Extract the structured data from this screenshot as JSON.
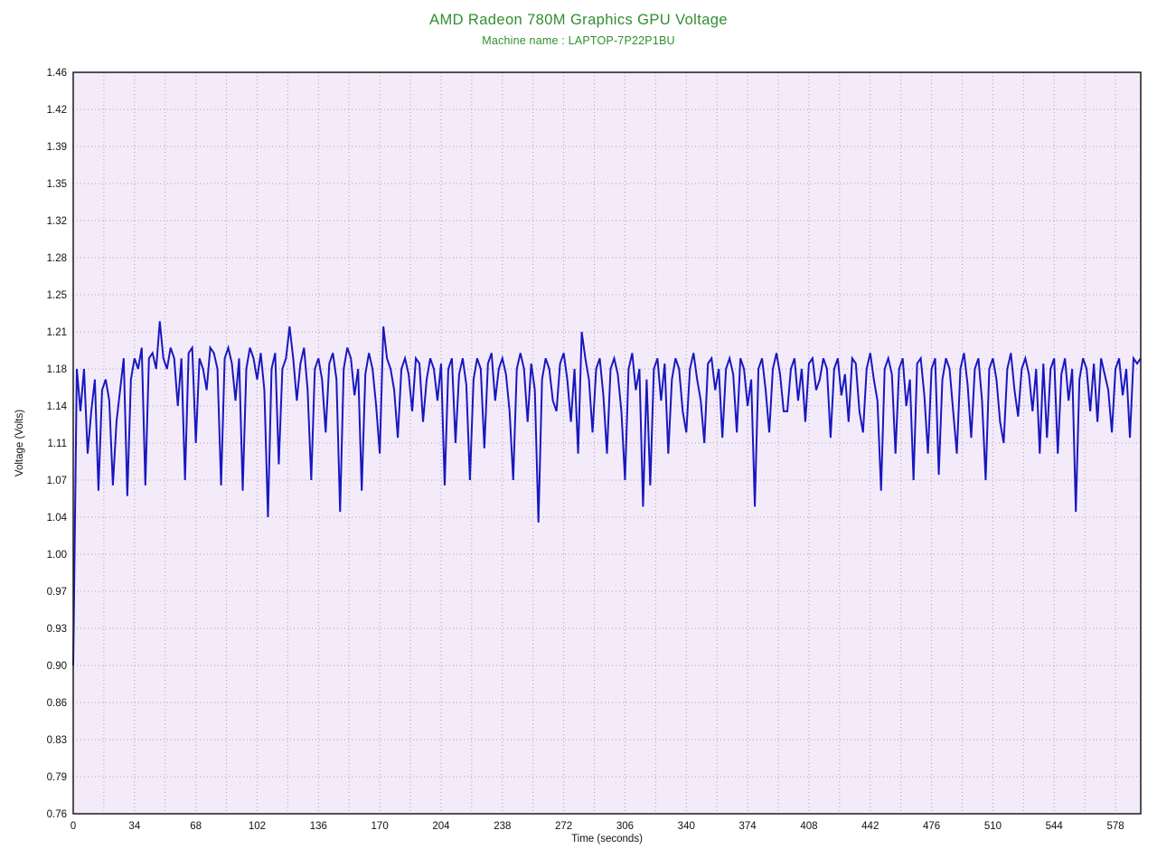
{
  "chart_data": {
    "type": "line",
    "title": "AMD Radeon 780M Graphics GPU Voltage",
    "subtitle": "Machine name : LAPTOP-7P22P1BU",
    "xlabel": "Time (seconds)",
    "ylabel": "Voltage (Volts)",
    "xlim": [
      0,
      592
    ],
    "ylim": [
      0.76,
      1.46
    ],
    "x_ticks": [
      0,
      34,
      68,
      102,
      136,
      170,
      204,
      238,
      272,
      306,
      340,
      374,
      408,
      442,
      476,
      510,
      544,
      578
    ],
    "x_minor_step": 17,
    "y_ticks": [
      1.46,
      1.425,
      1.39,
      1.355,
      1.32,
      1.285,
      1.25,
      1.215,
      1.18,
      1.145,
      1.11,
      1.075,
      1.04,
      1.005,
      0.97,
      0.935,
      0.9,
      0.865,
      0.83,
      0.795,
      0.76
    ],
    "y_tick_labels": [
      "1.46",
      "1.42",
      "1.39",
      "1.35",
      "1.32",
      "1.28",
      "1.25",
      "1.21",
      "1.18",
      "1.14",
      "1.11",
      "1.07",
      "1.04",
      "1.00",
      "0.97",
      "0.93",
      "0.90",
      "0.86",
      "0.83",
      "0.79",
      "0.76"
    ],
    "grid": true,
    "legend_position": "none",
    "series": [
      {
        "name": "GPU Voltage",
        "x_start": 0,
        "x_step_seconds": 2,
        "values": [
          0.9,
          1.18,
          1.14,
          1.18,
          1.1,
          1.14,
          1.17,
          1.065,
          1.16,
          1.17,
          1.15,
          1.07,
          1.13,
          1.16,
          1.19,
          1.06,
          1.17,
          1.19,
          1.18,
          1.2,
          1.07,
          1.19,
          1.195,
          1.18,
          1.225,
          1.19,
          1.18,
          1.2,
          1.19,
          1.145,
          1.19,
          1.075,
          1.195,
          1.2,
          1.11,
          1.19,
          1.18,
          1.16,
          1.2,
          1.195,
          1.18,
          1.07,
          1.19,
          1.2,
          1.185,
          1.15,
          1.19,
          1.065,
          1.18,
          1.2,
          1.19,
          1.17,
          1.195,
          1.16,
          1.04,
          1.18,
          1.195,
          1.09,
          1.18,
          1.19,
          1.22,
          1.19,
          1.15,
          1.185,
          1.2,
          1.16,
          1.075,
          1.18,
          1.19,
          1.17,
          1.12,
          1.185,
          1.195,
          1.17,
          1.045,
          1.18,
          1.2,
          1.19,
          1.155,
          1.18,
          1.065,
          1.175,
          1.195,
          1.18,
          1.145,
          1.1,
          1.22,
          1.19,
          1.18,
          1.16,
          1.115,
          1.18,
          1.19,
          1.175,
          1.14,
          1.19,
          1.185,
          1.13,
          1.17,
          1.19,
          1.18,
          1.15,
          1.185,
          1.07,
          1.18,
          1.19,
          1.11,
          1.175,
          1.19,
          1.165,
          1.075,
          1.17,
          1.19,
          1.18,
          1.105,
          1.185,
          1.195,
          1.15,
          1.18,
          1.19,
          1.175,
          1.14,
          1.075,
          1.18,
          1.195,
          1.18,
          1.13,
          1.185,
          1.16,
          1.035,
          1.17,
          1.19,
          1.18,
          1.15,
          1.14,
          1.185,
          1.195,
          1.17,
          1.13,
          1.18,
          1.1,
          1.215,
          1.19,
          1.17,
          1.12,
          1.18,
          1.19,
          1.155,
          1.1,
          1.18,
          1.19,
          1.175,
          1.14,
          1.075,
          1.18,
          1.195,
          1.16,
          1.18,
          1.05,
          1.17,
          1.07,
          1.18,
          1.19,
          1.15,
          1.185,
          1.1,
          1.17,
          1.19,
          1.18,
          1.14,
          1.12,
          1.18,
          1.195,
          1.17,
          1.15,
          1.11,
          1.185,
          1.19,
          1.16,
          1.18,
          1.115,
          1.18,
          1.19,
          1.175,
          1.12,
          1.19,
          1.18,
          1.145,
          1.17,
          1.05,
          1.18,
          1.19,
          1.16,
          1.12,
          1.18,
          1.195,
          1.175,
          1.14,
          1.14,
          1.18,
          1.19,
          1.15,
          1.18,
          1.13,
          1.185,
          1.19,
          1.16,
          1.17,
          1.19,
          1.18,
          1.115,
          1.18,
          1.19,
          1.155,
          1.175,
          1.13,
          1.19,
          1.185,
          1.14,
          1.12,
          1.18,
          1.195,
          1.17,
          1.15,
          1.065,
          1.18,
          1.19,
          1.175,
          1.1,
          1.18,
          1.19,
          1.145,
          1.17,
          1.075,
          1.185,
          1.19,
          1.155,
          1.1,
          1.18,
          1.19,
          1.08,
          1.17,
          1.19,
          1.18,
          1.14,
          1.1,
          1.18,
          1.195,
          1.165,
          1.115,
          1.18,
          1.19,
          1.15,
          1.075,
          1.18,
          1.19,
          1.17,
          1.13,
          1.11,
          1.18,
          1.195,
          1.16,
          1.135,
          1.18,
          1.19,
          1.175,
          1.14,
          1.18,
          1.1,
          1.185,
          1.115,
          1.18,
          1.19,
          1.1,
          1.175,
          1.19,
          1.15,
          1.18,
          1.045,
          1.17,
          1.19,
          1.18,
          1.14,
          1.185,
          1.13,
          1.19,
          1.175,
          1.16,
          1.12,
          1.18,
          1.19,
          1.155,
          1.18,
          1.115,
          1.19,
          1.185,
          1.19
        ]
      }
    ],
    "colors": {
      "title": "#2f8f2f",
      "subtitle": "#2f8f2f",
      "line": "#1818c0",
      "plot_bg": "#f4ebfa",
      "grid": "#a79fb2",
      "border": "#1a1a1a",
      "tick_text": "#111111",
      "page_bg": "#ffffff"
    }
  }
}
